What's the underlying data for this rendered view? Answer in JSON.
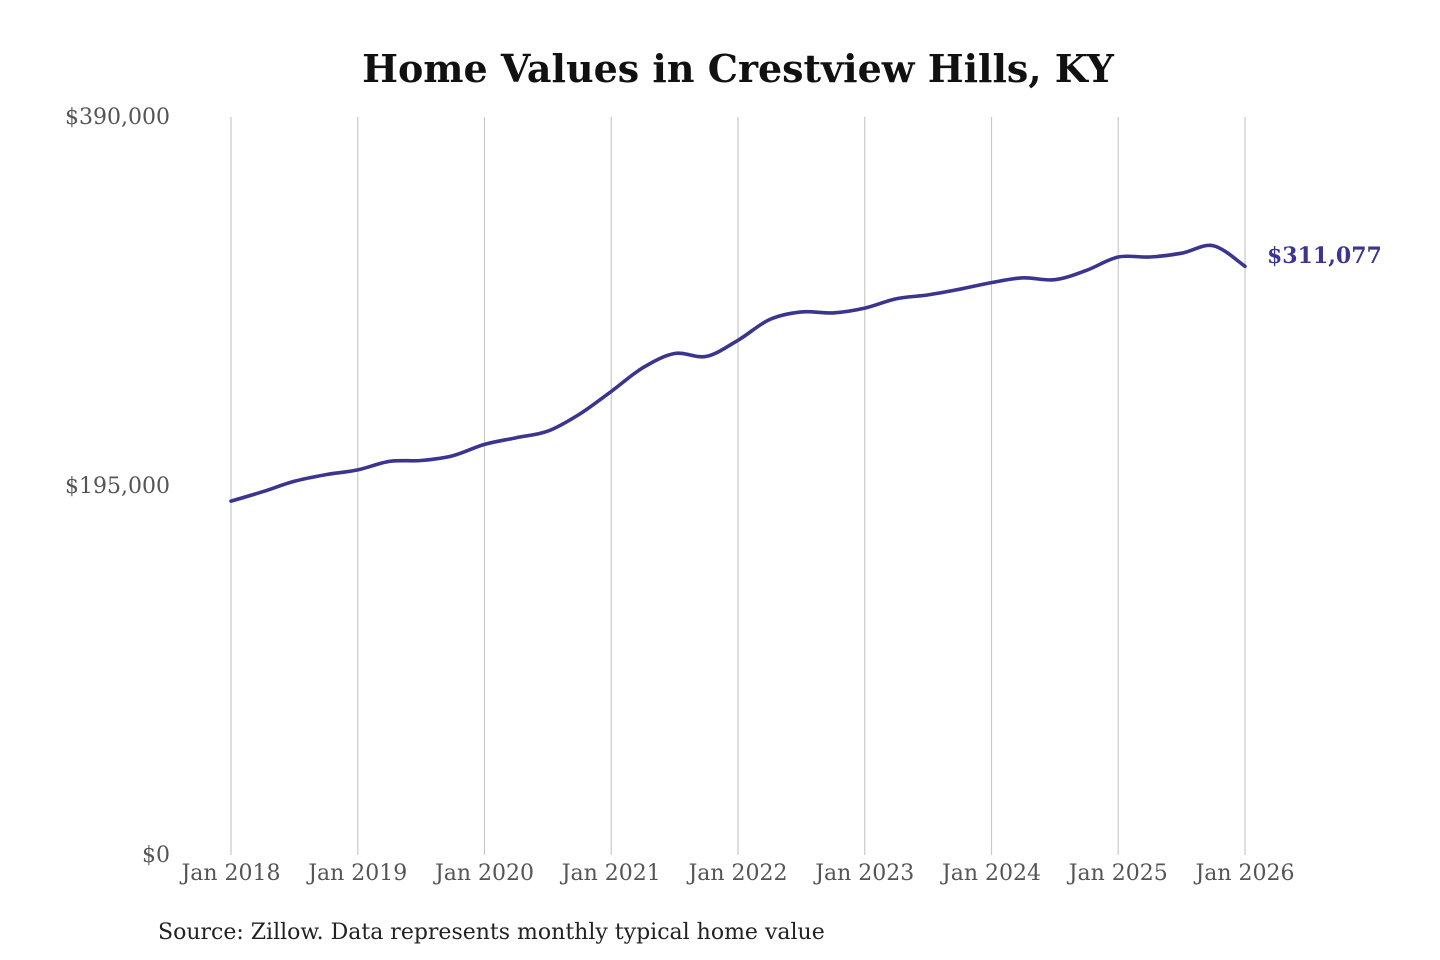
{
  "chart_data": {
    "type": "line",
    "title": "Home Values in Crestview Hills, KY",
    "xlabel": "",
    "ylabel": "",
    "ylim": [
      0,
      390000
    ],
    "yticks": [
      0,
      195000,
      390000
    ],
    "ytick_labels": [
      "$0",
      "$195,000",
      "$390,000"
    ],
    "xticks": [
      "2018-01",
      "2019-01",
      "2020-01",
      "2021-01",
      "2022-01",
      "2023-01",
      "2024-01",
      "2025-01",
      "2026-01"
    ],
    "xtick_labels": [
      "Jan 2018",
      "Jan 2019",
      "Jan 2020",
      "Jan 2021",
      "Jan 2022",
      "Jan 2023",
      "Jan 2024",
      "Jan 2025",
      "Jan 2026"
    ],
    "grid": "vertical",
    "color": "#3b3590",
    "series": [
      {
        "x": [
          "2018-01",
          "2018-04",
          "2018-07",
          "2018-10",
          "2019-01",
          "2019-04",
          "2019-07",
          "2019-10",
          "2020-01",
          "2020-04",
          "2020-07",
          "2020-10",
          "2021-01",
          "2021-04",
          "2021-07",
          "2021-10",
          "2022-01",
          "2022-04",
          "2022-07",
          "2022-10",
          "2023-01",
          "2023-04",
          "2023-07",
          "2023-10",
          "2024-01",
          "2024-04",
          "2024-07",
          "2024-10",
          "2025-01",
          "2025-04",
          "2025-07",
          "2025-10",
          "2026-01"
        ],
        "values": [
          187000,
          192000,
          197500,
          201000,
          203500,
          208000,
          208500,
          211000,
          217000,
          220500,
          224000,
          233000,
          245000,
          257500,
          265000,
          263500,
          272000,
          283000,
          287000,
          286500,
          289000,
          294000,
          296000,
          299000,
          302500,
          305000,
          304000,
          309000,
          316000,
          316000,
          318000,
          322000,
          311077
        ]
      }
    ],
    "end_label": "$311,077",
    "source": "Source: Zillow. Data represents monthly typical home value"
  }
}
